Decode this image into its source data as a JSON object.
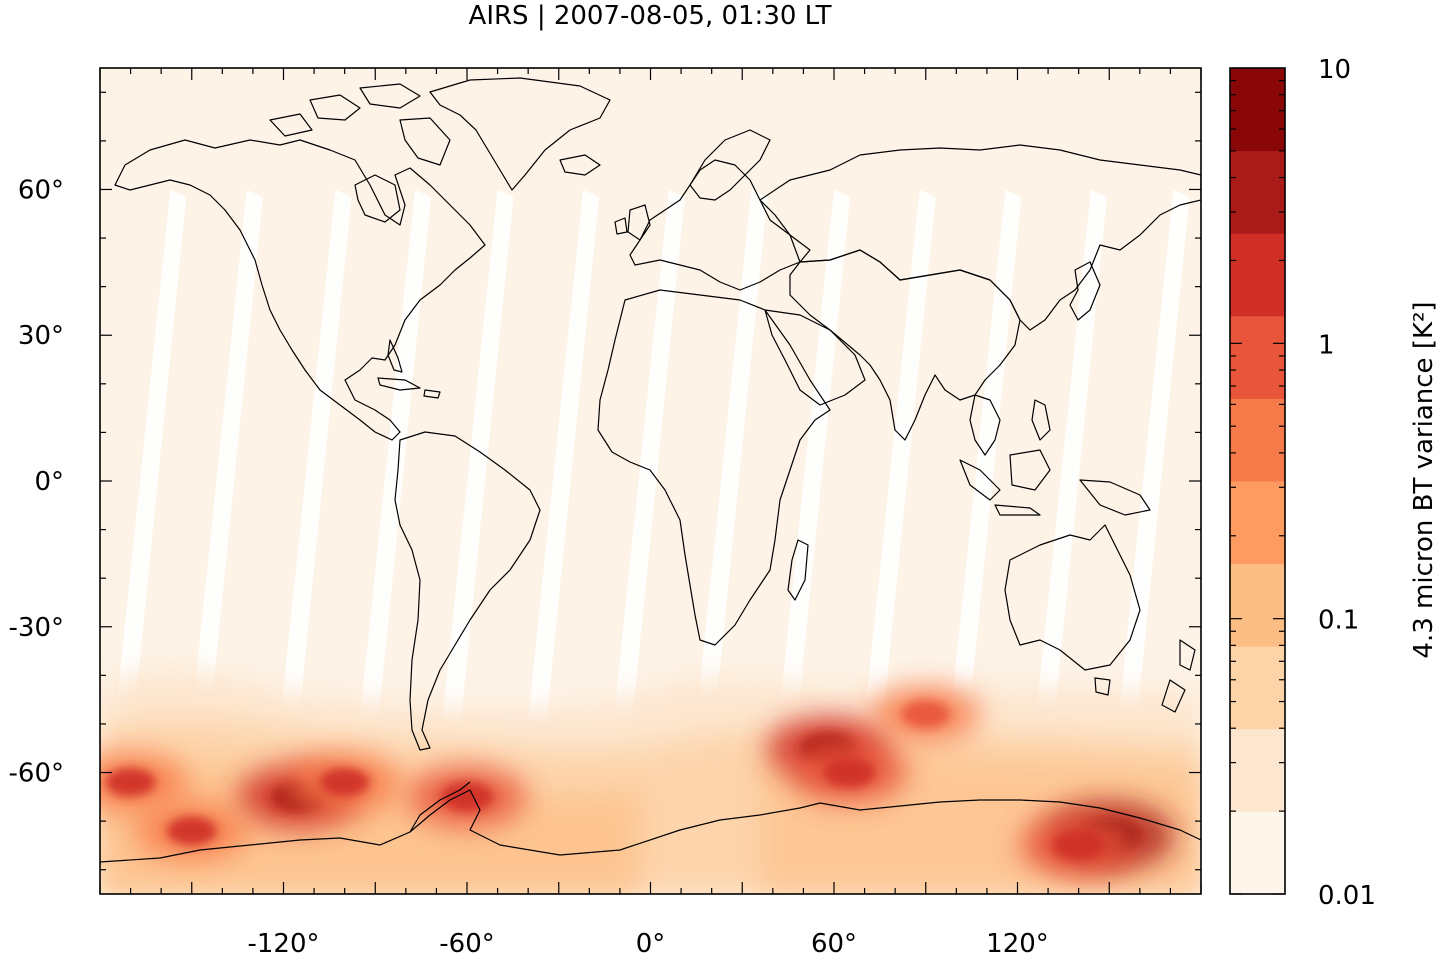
{
  "title": "AIRS | 2007-08-05, 01:30 LT",
  "colorbar": {
    "label": "4.3 micron BT variance [K²]",
    "tick_labels": [
      "10",
      "1",
      "0.1",
      "0.01"
    ],
    "bands": [
      "#fef5eb",
      "#fde6cf",
      "#fdd3a8",
      "#fdbe86",
      "#fd9b61",
      "#f77a4a",
      "#e8553a",
      "#cf2f25",
      "#aa1a18",
      "#8a0707"
    ]
  },
  "colors": {
    "ocean_background": "#fdf3e7",
    "coastline": "#000000",
    "swath_gap": "#ffffff"
  },
  "chart_data": {
    "type": "heatmap",
    "title": "AIRS | 2007-08-05, 01:30 LT",
    "x_ticks": [
      "-120°",
      "-60°",
      "0°",
      "60°",
      "120°"
    ],
    "y_ticks": [
      "60°",
      "30°",
      "0°",
      "-30°",
      "-60°"
    ],
    "x_tick_values": [
      -120,
      -60,
      0,
      60,
      120
    ],
    "y_tick_values": [
      60,
      30,
      0,
      -30,
      -60
    ],
    "xlim": [
      -180,
      180
    ],
    "ylim": [
      -85,
      85
    ],
    "colorbar_scale": "log",
    "colorbar_range": [
      0.01,
      10
    ],
    "hotspots": [
      {
        "lon": -170,
        "lat": -62,
        "value": 1.5
      },
      {
        "lon": -115,
        "lat": -65,
        "value": 4.0
      },
      {
        "lon": -100,
        "lat": -62,
        "value": 1.5
      },
      {
        "lon": -60,
        "lat": -65,
        "value": 2.5
      },
      {
        "lon": 58,
        "lat": -55,
        "value": 4.0
      },
      {
        "lon": 65,
        "lat": -60,
        "value": 2.0
      },
      {
        "lon": 90,
        "lat": -48,
        "value": 1.0
      },
      {
        "lon": 150,
        "lat": -73,
        "value": 8.0
      },
      {
        "lon": 140,
        "lat": -75,
        "value": 2.5
      },
      {
        "lon": -150,
        "lat": -72,
        "value": 1.5
      }
    ]
  }
}
